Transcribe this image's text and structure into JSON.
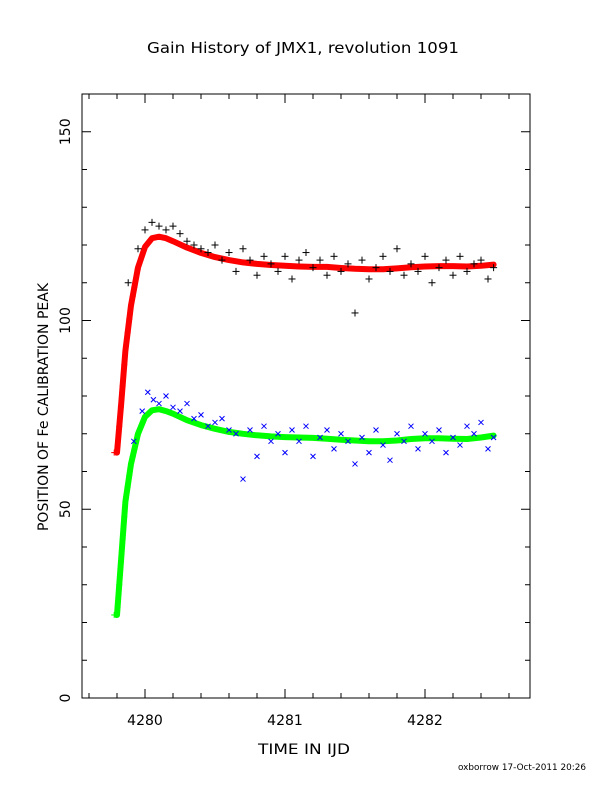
{
  "chart_data": {
    "type": "scatter",
    "title": "Gain History of JMX1, revolution 1091",
    "xlabel": "TIME IN IJD",
    "ylabel": "POSITION OF Fe CALIBRATION PEAK",
    "xlim": [
      4279.55,
      4282.75
    ],
    "ylim": [
      0,
      160
    ],
    "xticks": [
      "4280",
      "4281",
      "4282"
    ],
    "yticks": [
      "0",
      "50",
      "100",
      "150"
    ],
    "footer": "oxborrow 17-Oct-2011 20:26",
    "x_range": [
      4279.78,
      4282.49
    ],
    "series": [
      {
        "marker": "+",
        "marks": "points",
        "color": "#000000",
        "x": [
          4279.88,
          4279.95,
          4280.0,
          4280.05,
          4280.1,
          4280.15,
          4280.2,
          4280.25,
          4280.3,
          4280.35,
          4280.4,
          4280.45,
          4280.5,
          4280.55,
          4280.6,
          4280.65,
          4280.7,
          4280.75,
          4280.8,
          4280.85,
          4280.9,
          4280.95,
          4281.0,
          4281.05,
          4281.1,
          4281.15,
          4281.2,
          4281.25,
          4281.3,
          4281.35,
          4281.4,
          4281.45,
          4281.5,
          4281.55,
          4281.6,
          4281.65,
          4281.7,
          4281.75,
          4281.8,
          4281.85,
          4281.9,
          4281.95,
          4282.0,
          4282.05,
          4282.1,
          4282.15,
          4282.2,
          4282.25,
          4282.3,
          4282.35,
          4282.4,
          4282.45,
          4282.49
        ],
        "y": [
          110,
          119,
          124,
          126,
          125,
          124,
          125,
          123,
          121,
          120,
          119,
          118,
          120,
          116,
          118,
          113,
          119,
          116,
          112,
          117,
          115,
          113,
          117,
          111,
          116,
          118,
          114,
          116,
          112,
          117,
          113,
          115,
          102,
          116,
          111,
          114,
          117,
          113,
          119,
          112,
          115,
          113,
          117,
          110,
          114,
          116,
          112,
          117,
          113,
          115,
          116,
          111,
          114
        ]
      },
      {
        "marker": "+",
        "marks": "line",
        "color": "#ff0000",
        "x": [
          4279.8,
          4279.83,
          4279.86,
          4279.9,
          4279.95,
          4280.0,
          4280.05,
          4280.1,
          4280.15,
          4280.2,
          4280.3,
          4280.4,
          4280.5,
          4280.6,
          4280.7,
          4280.8,
          4280.9,
          4281.0,
          4281.1,
          4281.2,
          4281.3,
          4281.4,
          4281.5,
          4281.6,
          4281.7,
          4281.8,
          4281.9,
          4282.0,
          4282.1,
          4282.2,
          4282.3,
          4282.4,
          4282.49
        ],
        "y": [
          65,
          78,
          92,
          104,
          114,
          119.5,
          121.8,
          122.2,
          121.8,
          121,
          119.3,
          117.9,
          116.8,
          116,
          115.4,
          115,
          114.7,
          114.5,
          114.3,
          114.2,
          114.2,
          113.9,
          113.7,
          113.6,
          113.6,
          113.8,
          114.1,
          114.3,
          114.4,
          114.4,
          114.3,
          114.5,
          114.8
        ]
      },
      {
        "marker": "×",
        "marks": "points",
        "color": "#0000ff",
        "x": [
          4279.92,
          4279.98,
          4280.02,
          4280.06,
          4280.1,
          4280.15,
          4280.2,
          4280.25,
          4280.3,
          4280.35,
          4280.4,
          4280.45,
          4280.5,
          4280.55,
          4280.6,
          4280.65,
          4280.7,
          4280.75,
          4280.8,
          4280.85,
          4280.9,
          4280.95,
          4281.0,
          4281.05,
          4281.1,
          4281.15,
          4281.2,
          4281.25,
          4281.3,
          4281.35,
          4281.4,
          4281.45,
          4281.5,
          4281.55,
          4281.6,
          4281.65,
          4281.7,
          4281.75,
          4281.8,
          4281.85,
          4281.9,
          4281.95,
          4282.0,
          4282.05,
          4282.1,
          4282.15,
          4282.2,
          4282.25,
          4282.3,
          4282.35,
          4282.4,
          4282.45,
          4282.49
        ],
        "y": [
          68,
          76,
          81,
          79,
          78,
          80,
          77,
          76,
          78,
          74,
          75,
          72,
          73,
          74,
          71,
          70,
          58,
          71,
          64,
          72,
          68,
          70,
          65,
          71,
          68,
          72,
          64,
          69,
          71,
          66,
          70,
          68,
          62,
          69,
          65,
          71,
          67,
          63,
          70,
          68,
          72,
          66,
          70,
          68,
          71,
          65,
          69,
          67,
          72,
          70,
          73,
          66,
          69
        ]
      },
      {
        "marker": "+",
        "marks": "line",
        "color": "#00ff00",
        "x": [
          4279.8,
          4279.83,
          4279.86,
          4279.9,
          4279.95,
          4280.0,
          4280.05,
          4280.1,
          4280.15,
          4280.2,
          4280.3,
          4280.4,
          4280.5,
          4280.6,
          4280.7,
          4280.8,
          4280.9,
          4281.0,
          4281.1,
          4281.2,
          4281.3,
          4281.4,
          4281.5,
          4281.6,
          4281.7,
          4281.8,
          4281.9,
          4282.0,
          4282.1,
          4282.2,
          4282.3,
          4282.4,
          4282.49
        ],
        "y": [
          22,
          37,
          52,
          62,
          70,
          74.5,
          76.2,
          76.5,
          76,
          75.3,
          73.6,
          72.3,
          71.3,
          70.5,
          70,
          69.6,
          69.3,
          69.1,
          69,
          68.9,
          68.7,
          68.4,
          68.2,
          68,
          68,
          68.2,
          68.6,
          68.8,
          68.8,
          68.7,
          68.6,
          69,
          69.5
        ]
      }
    ]
  }
}
